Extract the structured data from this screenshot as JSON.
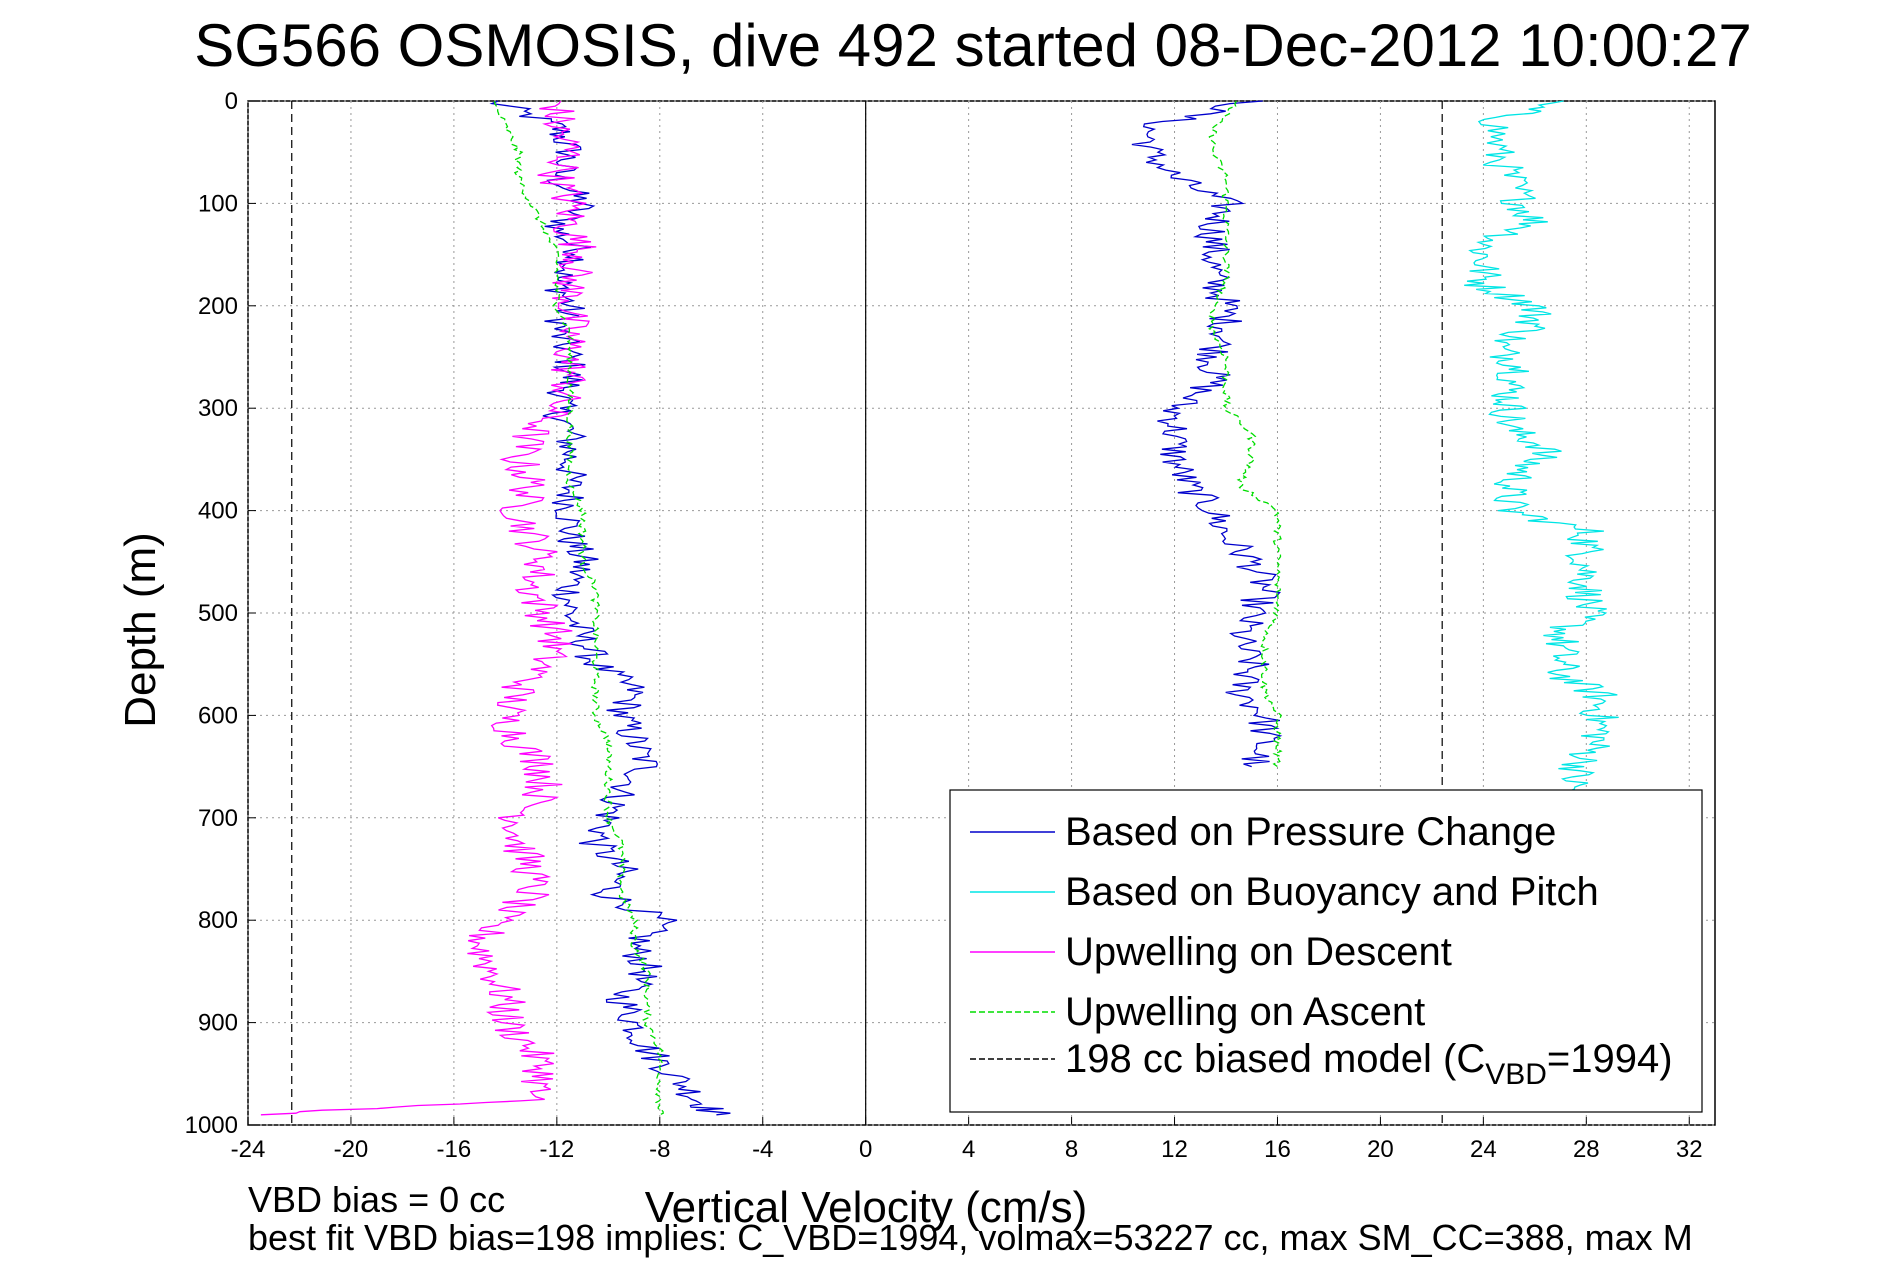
{
  "chart_data": {
    "type": "line",
    "title": "SG566 OSMOSIS, dive 492 started 08-Dec-2012 10:00:27",
    "xlabel": "Vertical Velocity (cm/s)",
    "ylabel": "Depth (m)",
    "xlim": [
      -24,
      33
    ],
    "ylim": [
      1000,
      0
    ],
    "y_reversed": true,
    "grid": true,
    "xticks": [
      "-24",
      "-20",
      "-16",
      "-12",
      "-8",
      "-4",
      "0",
      "4",
      "8",
      "12",
      "16",
      "20",
      "24",
      "28",
      "32"
    ],
    "yticks": [
      "0",
      "100",
      "200",
      "300",
      "400",
      "500",
      "600",
      "700",
      "800",
      "900",
      "1000"
    ],
    "legend": {
      "placement": "bottom-right",
      "entries": [
        {
          "label": "Based on Pressure Change",
          "color": "#0000cc",
          "style": "solid"
        },
        {
          "label": "Based on Buoyancy and Pitch",
          "color": "#00e5e5",
          "style": "solid"
        },
        {
          "label": "Upwelling on Descent",
          "color": "#ff00ff",
          "style": "solid"
        },
        {
          "label": "Upwelling on Ascent",
          "color": "#00dd00",
          "style": "dashed"
        },
        {
          "label_prefix": "198 cc biased model (C",
          "label_sub": "VBD",
          "label_suffix": "=1994)",
          "color": "#000000",
          "style": "dashed"
        }
      ]
    },
    "vertical_refs": [
      {
        "x": 0,
        "color": "#000000",
        "style": "solid"
      },
      {
        "x": -22.3,
        "color": "#000000",
        "style": "dashed"
      },
      {
        "x": 22.4,
        "color": "#000000",
        "style": "dashed"
      }
    ],
    "series": [
      {
        "name": "Based on Pressure Change",
        "color": "#0000cc",
        "style": "solid",
        "depth": [
          0,
          25,
          50,
          75,
          100,
          125,
          150,
          175,
          200,
          225,
          250,
          275,
          300,
          325,
          350,
          375,
          400,
          425,
          450,
          475,
          500,
          525,
          550,
          575,
          600,
          625,
          650,
          675,
          700,
          725,
          750,
          775,
          800,
          825,
          850,
          875,
          900,
          925,
          950,
          975,
          990
        ],
        "descent_x": [
          -14.5,
          -12,
          -11.5,
          -12,
          -11,
          -12,
          -11,
          -12,
          -11.5,
          -12,
          -11.5,
          -11.5,
          -12,
          -11.5,
          -11.5,
          -11.5,
          -11.5,
          -11.5,
          -11,
          -11.5,
          -11.5,
          -11,
          -10.5,
          -9,
          -9.5,
          -9,
          -8.5,
          -9.5,
          -10,
          -10.5,
          -9.5,
          -10,
          -8,
          -9,
          -8.5,
          -9.5,
          -9,
          -8.5,
          -7.5,
          -6.5,
          -5.8
        ],
        "ascent_x": [
          15,
          11,
          11,
          12,
          14,
          13.5,
          13.5,
          13.5,
          14,
          14,
          13.5,
          13.5,
          12,
          12,
          12,
          12.5,
          13.5,
          14,
          15,
          15.5,
          15,
          14.5,
          15,
          14.5,
          15.5,
          15.5,
          15
        ]
      },
      {
        "name": "Based on Buoyancy and Pitch",
        "color": "#00e5e5",
        "style": "solid",
        "depth": [
          0,
          20,
          50,
          75,
          100,
          120,
          140,
          160,
          180,
          200,
          220,
          240,
          260,
          280,
          300,
          320,
          340,
          360,
          380,
          400,
          420,
          440,
          460,
          480,
          500,
          520,
          540,
          560,
          580,
          600,
          620,
          640,
          660,
          680
        ],
        "x": [
          26.5,
          24.5,
          24.5,
          25,
          25.5,
          26,
          24,
          24,
          24,
          26,
          26,
          24.5,
          25.5,
          25,
          25,
          25,
          26.5,
          25.5,
          25,
          25,
          28,
          28,
          28,
          28,
          28,
          27,
          27,
          27,
          28.5,
          28.5,
          28.5,
          28,
          27.5,
          27.5
        ]
      },
      {
        "name": "Upwelling on Descent",
        "color": "#ff00ff",
        "style": "solid",
        "depth": [
          0,
          25,
          50,
          75,
          100,
          125,
          150,
          175,
          200,
          225,
          250,
          275,
          300,
          325,
          350,
          375,
          400,
          425,
          450,
          475,
          500,
          525,
          550,
          575,
          600,
          625,
          650,
          675,
          700,
          725,
          750,
          775,
          800,
          825,
          850,
          875,
          900,
          925,
          950,
          975,
          990
        ],
        "x": [
          -12,
          -12,
          -11.5,
          -12,
          -11.5,
          -11.5,
          -11,
          -11.5,
          -11.5,
          -11.5,
          -11.5,
          -11.5,
          -12,
          -13,
          -13.5,
          -13,
          -13.5,
          -13,
          -12.5,
          -13,
          -12.5,
          -12,
          -12.5,
          -13.5,
          -14,
          -13.5,
          -12.5,
          -12.5,
          -13.5,
          -13.5,
          -13,
          -13,
          -14.5,
          -15,
          -14.5,
          -14,
          -14,
          -13,
          -12.5,
          -13,
          -23.5
        ]
      },
      {
        "name": "Upwelling on Ascent",
        "color": "#00dd00",
        "style": "dashed",
        "depth": [
          0,
          25,
          50,
          75,
          100,
          125,
          150,
          175,
          200,
          225,
          250,
          275,
          300,
          325,
          350,
          375,
          400,
          425,
          450,
          475,
          500,
          525,
          550,
          575,
          600,
          625,
          650,
          675,
          700,
          725,
          750,
          775,
          800,
          825,
          850,
          875,
          900,
          925,
          950,
          975,
          990
        ],
        "descent_x": [
          -14.5,
          -14,
          -13.5,
          -13.5,
          -13,
          -12.5,
          -12,
          -12,
          -12,
          -11.5,
          -11.5,
          -11.5,
          -11.5,
          -11.5,
          -11.5,
          -11.5,
          -11,
          -11,
          -11,
          -10.5,
          -10.5,
          -10.5,
          -10.5,
          -10.5,
          -10.5,
          -10,
          -10,
          -10,
          -10,
          -9.5,
          -9.5,
          -9.5,
          -9,
          -9,
          -8.5,
          -8.5,
          -8.5,
          -8,
          -8,
          -8,
          -8
        ],
        "ascent_x": [
          14.5,
          13.5,
          13.5,
          14,
          14,
          14,
          14,
          14,
          13.5,
          13.5,
          14,
          14,
          14,
          15,
          15,
          14.5,
          16,
          16,
          16,
          16,
          16,
          15.5,
          15.5,
          15.5,
          16,
          16,
          16
        ]
      }
    ]
  },
  "footer": {
    "line1": "VBD bias = 0 cc",
    "line2": "best fit VBD bias=198 implies: C_VBD=1994, volmax=53227 cc, max SM_CC=388, max M"
  }
}
